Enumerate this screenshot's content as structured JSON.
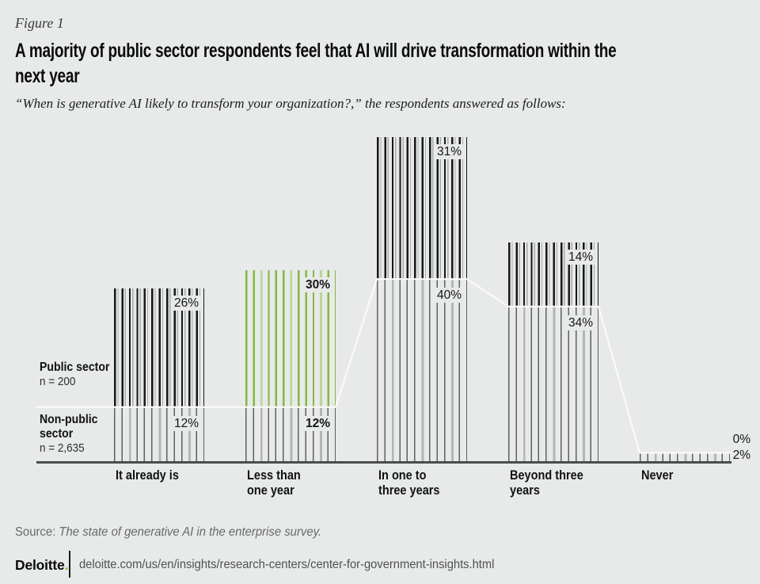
{
  "figure_label": "Figure 1",
  "title": {
    "line1": "A majority of public sector respondents feel that AI will drive transformation within the",
    "line2": "next year"
  },
  "subtitle": "“When is generative AI likely to transform your organization?,” the respondents answered as follows:",
  "chart_data": {
    "type": "bar",
    "categories": [
      "It already is",
      "Less than one year",
      "In one to three years",
      "Beyond three years",
      "Never"
    ],
    "series": [
      {
        "name": "Public sector",
        "n_label": "n = 200",
        "values": [
          26,
          30,
          31,
          14,
          0
        ],
        "labels": [
          "26%",
          "30%",
          "31%",
          "14%",
          "0%"
        ]
      },
      {
        "name": "Non-public sector",
        "n_label": "n = 2,635",
        "values": [
          12,
          12,
          40,
          34,
          2
        ],
        "labels": [
          "12%",
          "12%",
          "40%",
          "34%",
          "2%"
        ]
      }
    ],
    "unit": "%",
    "highlight_index": 1,
    "legend_position": "left",
    "grid": false,
    "colors": {
      "public_stripes": "#17181a",
      "public_highlight_stripes": "#84b843",
      "non_public_stripes": "#5e6062",
      "background": "#e8e9e9",
      "boundary_line": "#fafafa",
      "axis_line": "#4a4c4e",
      "accent_green": "#86bc25"
    }
  },
  "source": {
    "label": "Source: ",
    "text": "The state of generative AI in the enterprise survey."
  },
  "footer": {
    "brand": "Deloitte",
    "brand_dot": ".",
    "url": "deloitte.com/us/en/insights/research-centers/center-for-government-insights.html"
  }
}
